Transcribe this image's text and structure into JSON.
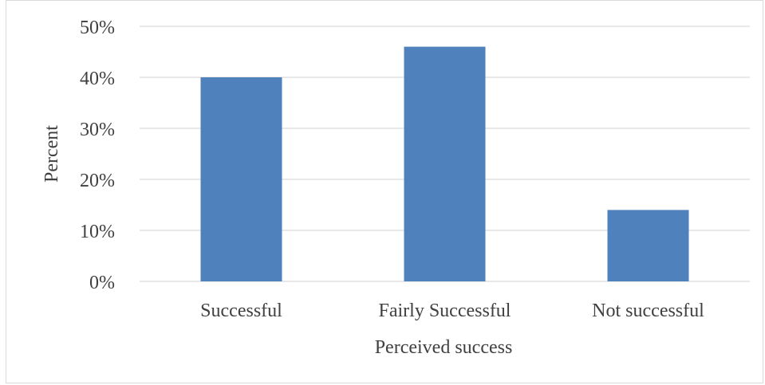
{
  "chart_data": {
    "type": "bar",
    "title": "",
    "xlabel": "Perceived success",
    "ylabel": "Percent",
    "categories": [
      "Successful",
      "Fairly Successful",
      "Not successful"
    ],
    "values": [
      40,
      46,
      14
    ],
    "ylim": [
      0,
      50
    ],
    "yticks": [
      0,
      10,
      20,
      30,
      40,
      50
    ],
    "ytick_labels": [
      "0%",
      "10%",
      "20%",
      "30%",
      "40%",
      "50%"
    ],
    "grid": true,
    "legend": "none",
    "bar_color": "#4f81bd",
    "grid_color": "#d9d9d9",
    "text_color": "#404040"
  }
}
